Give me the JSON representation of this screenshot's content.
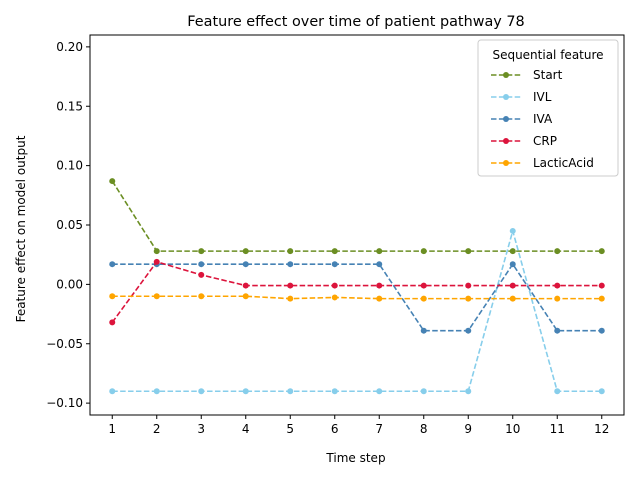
{
  "chart_data": {
    "type": "line",
    "title": "Feature effect over time of patient pathway 78",
    "xlabel": "Time step",
    "ylabel": "Feature effect on model output",
    "x": [
      1,
      2,
      3,
      4,
      5,
      6,
      7,
      8,
      9,
      10,
      11,
      12
    ],
    "xlim": [
      0.5,
      12.5
    ],
    "ylim": [
      -0.11,
      0.21
    ],
    "yticks": [
      -0.1,
      -0.05,
      0.0,
      0.05,
      0.1,
      0.15,
      0.2
    ],
    "ytick_labels": [
      "−0.10",
      "−0.05",
      "0.00",
      "0.05",
      "0.10",
      "0.15",
      "0.20"
    ],
    "grid": false,
    "legend": {
      "title": "Sequential feature",
      "placement": "top-right"
    },
    "series": [
      {
        "name": "Start",
        "color": "#6b8e23",
        "values": [
          0.087,
          0.028,
          0.028,
          0.028,
          0.028,
          0.028,
          0.028,
          0.028,
          0.028,
          0.028,
          0.028,
          0.028
        ]
      },
      {
        "name": "IVL",
        "color": "#87ceeb",
        "values": [
          -0.09,
          -0.09,
          -0.09,
          -0.09,
          -0.09,
          -0.09,
          -0.09,
          -0.09,
          -0.09,
          0.045,
          -0.09,
          -0.09
        ]
      },
      {
        "name": "IVA",
        "color": "#4682b4",
        "values": [
          0.017,
          0.017,
          0.017,
          0.017,
          0.017,
          0.017,
          0.017,
          -0.039,
          -0.039,
          0.017,
          -0.039,
          -0.039
        ]
      },
      {
        "name": "CRP",
        "color": "#dc143c",
        "values": [
          -0.032,
          0.019,
          0.008,
          -0.001,
          -0.001,
          -0.001,
          -0.001,
          -0.001,
          -0.001,
          -0.001,
          -0.001,
          -0.001
        ]
      },
      {
        "name": "LacticAcid",
        "color": "#ffa500",
        "values": [
          -0.01,
          -0.01,
          -0.01,
          -0.01,
          -0.012,
          -0.011,
          -0.012,
          -0.012,
          -0.012,
          -0.012,
          -0.012,
          -0.012
        ]
      }
    ]
  }
}
